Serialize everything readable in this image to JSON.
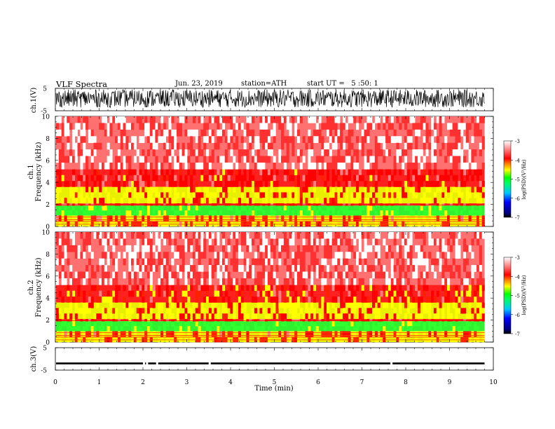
{
  "header": {
    "title": "VLF Spectra",
    "date": "Jun. 23, 2019",
    "station": "station=ATH",
    "start": "start UT =   5 :50: 1"
  },
  "chart_data": [
    {
      "type": "line",
      "name": "ch1-waveform",
      "ylabel": "ch.1(V)",
      "ylim": [
        -5,
        5
      ],
      "yticks": [
        "5",
        "-5"
      ],
      "xlim": [
        0,
        10
      ],
      "description_values": {
        "amplitude_range_V": [
          -3.5,
          4.5
        ]
      }
    },
    {
      "type": "heatmap",
      "name": "ch1-spectrogram",
      "ylabel_lines": [
        "ch.1",
        "Frequency (kHz)"
      ],
      "ylim": [
        0,
        10
      ],
      "yticks": [
        "0",
        "2",
        "4",
        "6",
        "8",
        "10"
      ],
      "xlim": [
        0,
        9.8
      ],
      "bands": [
        {
          "f0": 0,
          "f1": 0.5,
          "level": -4.3
        },
        {
          "f0": 0.5,
          "f1": 1.0,
          "level": -4.2
        },
        {
          "f0": 1.0,
          "f1": 1.9,
          "level": -5.4
        },
        {
          "f0": 1.9,
          "f1": 2.1,
          "level": -4.0
        },
        {
          "f0": 2.1,
          "f1": 3.6,
          "level": -4.6
        },
        {
          "f0": 3.6,
          "f1": 5.2,
          "level": -4.0
        },
        {
          "f0": 5.2,
          "f1": 10,
          "level": -3.5
        }
      ],
      "colorbar": {
        "label": "log(PSD)(V²/Hz)",
        "min": -7,
        "max": -3,
        "ticks": [
          "-3",
          "-4",
          "-5",
          "-6",
          "-7"
        ]
      }
    },
    {
      "type": "heatmap",
      "name": "ch2-spectrogram",
      "ylabel_lines": [
        "ch.2",
        "Frequency (kHz)"
      ],
      "ylim": [
        0,
        10
      ],
      "yticks": [
        "0",
        "2",
        "4",
        "6",
        "8",
        "10"
      ],
      "xlim": [
        0,
        9.8
      ],
      "bands": [
        {
          "f0": 0,
          "f1": 0.5,
          "level": -4.4
        },
        {
          "f0": 0.5,
          "f1": 1.0,
          "level": -4.2
        },
        {
          "f0": 1.0,
          "f1": 1.9,
          "level": -5.3
        },
        {
          "f0": 1.9,
          "f1": 2.1,
          "level": -4.0
        },
        {
          "f0": 2.1,
          "f1": 3.6,
          "level": -4.6
        },
        {
          "f0": 3.6,
          "f1": 5.2,
          "level": -4.1
        },
        {
          "f0": 5.2,
          "f1": 10,
          "level": -3.5
        }
      ],
      "colorbar": {
        "label": "log(PSD)(V²/Hz)",
        "min": -7,
        "max": -3,
        "ticks": [
          "-3",
          "-4",
          "-5",
          "-6",
          "-7"
        ]
      }
    },
    {
      "type": "line",
      "name": "ch3-waveform",
      "ylabel": "ch.3(V)",
      "ylim": [
        -5,
        5
      ],
      "yticks": [
        "5",
        "-5"
      ],
      "xlim": [
        0,
        10
      ],
      "description_values": {
        "level_V": -2
      }
    }
  ],
  "xaxis": {
    "label": "Time (min)",
    "ticks": [
      "0",
      "1",
      "2",
      "3",
      "4",
      "5",
      "6",
      "7",
      "8",
      "9",
      "10"
    ],
    "min": 0,
    "max": 10
  },
  "colors": {
    "low": "#000000",
    "blue": "#0000ff",
    "cyan": "#00c8ff",
    "green": "#00ff00",
    "yellow": "#ffff00",
    "red": "#ff0000",
    "high": "#ffffff"
  }
}
